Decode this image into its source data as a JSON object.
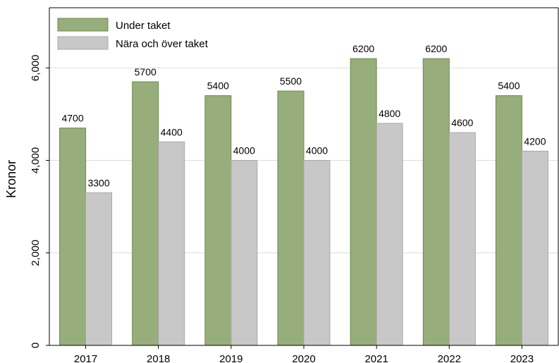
{
  "chart_data": {
    "type": "bar",
    "title": "",
    "xlabel": "",
    "ylabel": "Kronor",
    "categories": [
      "2017",
      "2018",
      "2019",
      "2020",
      "2021",
      "2022",
      "2023"
    ],
    "series": [
      {
        "name": "Under taket",
        "values": [
          4700,
          5700,
          5400,
          5500,
          6200,
          6200,
          5400
        ],
        "color": "#98ad7c",
        "edge_color": "#6b8a4a"
      },
      {
        "name": "Nära och över taket",
        "values": [
          3300,
          4400,
          4000,
          4000,
          4800,
          4600,
          4200
        ],
        "color": "#c8c8c8",
        "edge_color": "#a8a8a8"
      }
    ],
    "ylim": [
      0,
      7300
    ],
    "yticks": [
      0,
      2000,
      4000,
      6000
    ],
    "ytick_labels": [
      "0",
      "2,000",
      "4,000",
      "6,000"
    ],
    "grid": true,
    "legend_position": "top-left"
  }
}
